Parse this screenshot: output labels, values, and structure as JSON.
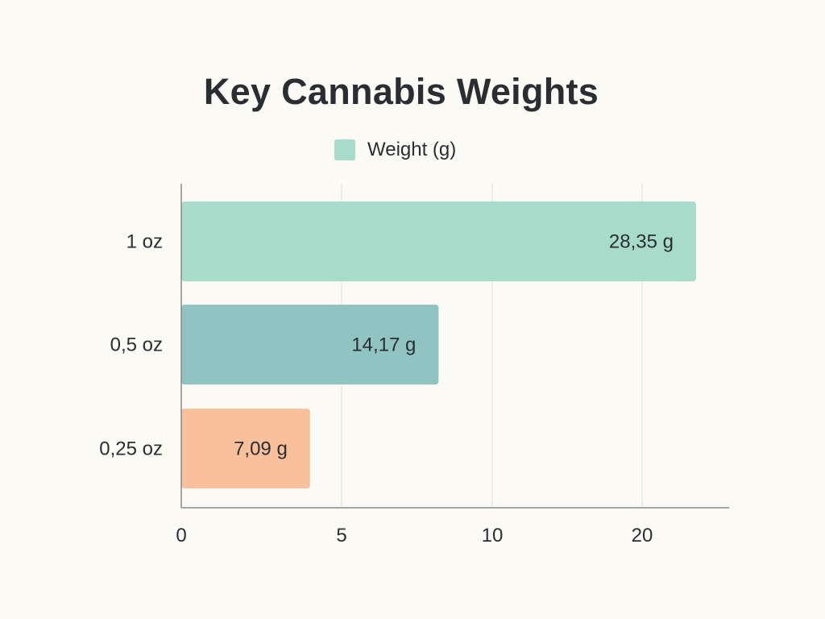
{
  "chart_data": {
    "type": "bar",
    "orientation": "horizontal",
    "title": "Key Cannabis Weights",
    "legend": [
      "Weight (g)"
    ],
    "legend_placement": "top-center",
    "categories": [
      "1 oz",
      "0,5 oz",
      "0,25 oz"
    ],
    "values": [
      28.35,
      14.17,
      7.09
    ],
    "data_labels": [
      "28,35 g",
      "14,17 g",
      "7,09 g"
    ],
    "colors": [
      "#a8dcca",
      "#8fc4c2",
      "#f9c09c"
    ],
    "x_ticks": [
      "0",
      "5",
      "10",
      "20"
    ],
    "xlabel": "",
    "ylabel": "",
    "grid": true
  }
}
